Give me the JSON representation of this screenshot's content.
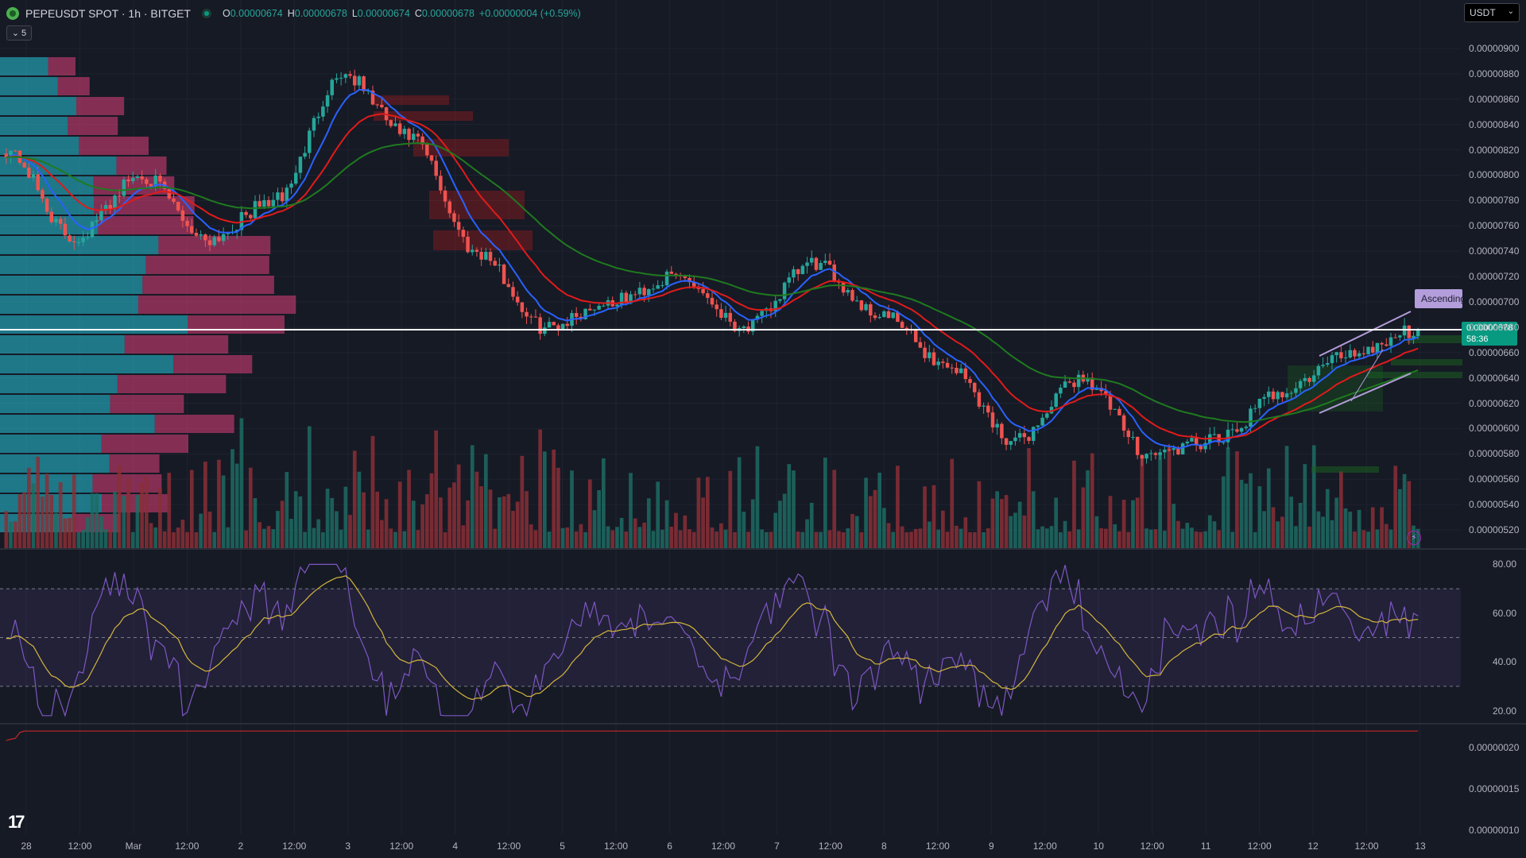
{
  "header": {
    "symbol": "PEPEUSDT SPOT · 1h · BITGET",
    "ohlc": [
      {
        "k": "O",
        "v": "0.00000674"
      },
      {
        "k": "H",
        "v": "0.00000678"
      },
      {
        "k": "L",
        "v": "0.00000674"
      },
      {
        "k": "C",
        "v": "0.00000678"
      }
    ],
    "change": "+0.00000004 (+0.59%)",
    "indicators_toggle": "5"
  },
  "currency_select": "USDT",
  "last_price": {
    "value": "0.00000678",
    "countdown": "58:36"
  },
  "pattern_label": "Ascending",
  "colors": {
    "bg": "#161a25",
    "up": "#26a69a",
    "down": "#ef5350",
    "ema_fast": "#2962ff",
    "ema_mid": "#e01b1b",
    "ema_slow": "#1f7a1f",
    "rsi": "#7e57c2",
    "rsi_ma": "#d4b53c",
    "atr": "#c62828",
    "vp_up": "#26c6da",
    "vp_down": "#e0407a"
  },
  "price_axis": [
    "0.00000900",
    "0.00000880",
    "0.00000860",
    "0.00000840",
    "0.00000820",
    "0.00000800",
    "0.00000780",
    "0.00000760",
    "0.00000740",
    "0.00000720",
    "0.00000700",
    "0.00000680",
    "0.00000660",
    "0.00000640",
    "0.00000620",
    "0.00000600",
    "0.00000580",
    "0.00000560",
    "0.00000540",
    "0.00000520"
  ],
  "rsi_axis": [
    "80.00",
    "60.00",
    "40.00",
    "20.00"
  ],
  "atr_axis": [
    "0.00000020",
    "0.00000015",
    "0.00000010"
  ],
  "time_axis": [
    "28",
    "12:00",
    "Mar",
    "12:00",
    "2",
    "12:00",
    "3",
    "12:00",
    "4",
    "12:00",
    "5",
    "12:00",
    "6",
    "12:00",
    "7",
    "12:00",
    "8",
    "12:00",
    "9",
    "12:00",
    "10",
    "12:00",
    "11",
    "12:00",
    "12",
    "12:00",
    "13"
  ],
  "chart_data": {
    "type": "candlestick",
    "interval": "1h",
    "price_ylim": [
      5.1e-06,
      9.1e-06
    ],
    "closes_key_points": [
      {
        "t": "28",
        "close": 8.2e-06
      },
      {
        "t": "28 12:00",
        "close": 7.5e-06
      },
      {
        "t": "Mar",
        "close": 8e-06
      },
      {
        "t": "1 12:00",
        "close": 7.5e-06
      },
      {
        "t": "2 12:00",
        "close": 7.8e-06
      },
      {
        "t": "3",
        "close": 8.8e-06
      },
      {
        "t": "3 12:00",
        "close": 8.3e-06
      },
      {
        "t": "4",
        "close": 7.4e-06
      },
      {
        "t": "4 12:00",
        "close": 6.8e-06
      },
      {
        "t": "5 12:00",
        "close": 7e-06
      },
      {
        "t": "6 12:00",
        "close": 7.2e-06
      },
      {
        "t": "7",
        "close": 6.8e-06
      },
      {
        "t": "7 12:00",
        "close": 7.3e-06
      },
      {
        "t": "8 12:00",
        "close": 6.9e-06
      },
      {
        "t": "9 12:00",
        "close": 6.5e-06
      },
      {
        "t": "10",
        "close": 5.9e-06
      },
      {
        "t": "10 12:00",
        "close": 6.4e-06
      },
      {
        "t": "11",
        "close": 5.8e-06
      },
      {
        "t": "11 12:00",
        "close": 5.9e-06
      },
      {
        "t": "12",
        "close": 6.3e-06
      },
      {
        "t": "12 12:00",
        "close": 6.6e-06
      },
      {
        "t": "13",
        "close": 6.78e-06
      }
    ],
    "rsi_ylim": [
      15,
      85
    ],
    "rsi_bands": [
      30,
      50,
      70
    ],
    "atr_ylim": [
      9.5e-08,
      2.25e-07
    ]
  }
}
